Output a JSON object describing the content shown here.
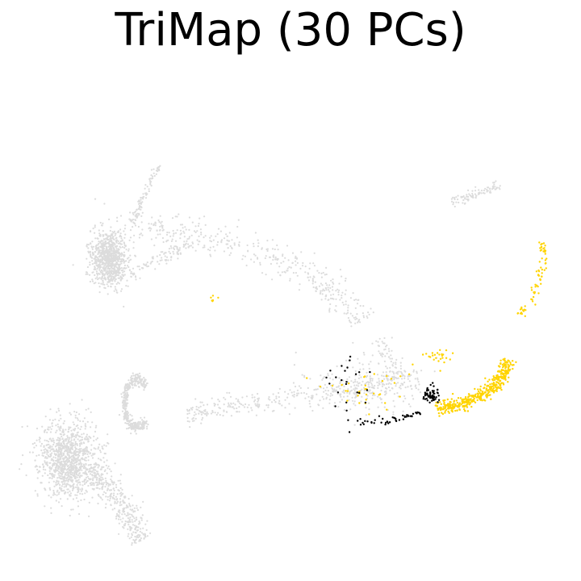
{
  "chart_data": {
    "type": "scatter",
    "title": "TriMap (30 PCs)",
    "xlabel": "",
    "ylabel": "",
    "axes_visible": false,
    "grid": false,
    "legend": "none",
    "colors": {
      "background_cells": "#dcdcdc",
      "highlight_yellow": "#ffd400",
      "highlight_black": "#000000"
    },
    "series": [
      {
        "color": "#dcdcdc",
        "marker_size": "small",
        "clusters": [
          {
            "shape": "blob",
            "center": [
              135,
              320
            ],
            "spread": [
              22,
              35
            ],
            "count": 900
          },
          {
            "shape": "curve",
            "path": [
              [
                150,
                280
              ],
              [
                230,
                290
              ],
              [
                320,
                310
              ],
              [
                400,
                350
              ],
              [
                450,
                400
              ]
            ],
            "width": 20,
            "count": 420
          },
          {
            "shape": "curve",
            "path": [
              [
                165,
                275
              ],
              [
                180,
                240
              ],
              [
                198,
                205
              ]
            ],
            "width": 4,
            "count": 80
          },
          {
            "shape": "curve",
            "path": [
              [
                160,
                340
              ],
              [
                200,
                320
              ],
              [
                240,
                300
              ]
            ],
            "width": 8,
            "count": 90
          },
          {
            "shape": "curve",
            "path": [
              [
                560,
                250
              ],
              [
                590,
                240
              ],
              [
                620,
                230
              ]
            ],
            "width": 6,
            "count": 90
          },
          {
            "shape": "crescent",
            "center": [
              170,
              500
            ],
            "spread": [
              20,
              30
            ],
            "count": 380
          },
          {
            "shape": "blob",
            "center": [
              85,
              570
            ],
            "spread": [
              38,
              48
            ],
            "count": 1100
          },
          {
            "shape": "curve",
            "path": [
              [
                110,
                580
              ],
              [
                140,
                610
              ],
              [
                160,
                640
              ],
              [
                175,
                670
              ]
            ],
            "width": 16,
            "count": 360
          },
          {
            "shape": "curve",
            "path": [
              [
                230,
                515
              ],
              [
                300,
                500
              ],
              [
                380,
                490
              ],
              [
                460,
                480
              ],
              [
                520,
                470
              ]
            ],
            "width": 14,
            "count": 320
          },
          {
            "shape": "blob",
            "center": [
              450,
              480
            ],
            "spread": [
              70,
              35
            ],
            "count": 220
          },
          {
            "shape": "curve",
            "path": [
              [
                470,
                420
              ],
              [
                480,
                440
              ],
              [
                495,
                470
              ]
            ],
            "width": 10,
            "count": 60
          }
        ]
      },
      {
        "color": "#ffd400",
        "marker_size": "small",
        "clusters": [
          {
            "shape": "curve",
            "path": [
              [
                540,
                505
              ],
              [
                570,
                500
              ],
              [
                600,
                490
              ],
              [
                620,
                470
              ],
              [
                630,
                445
              ]
            ],
            "width": 9,
            "count": 420
          },
          {
            "shape": "curve",
            "path": [
              [
                640,
                395
              ],
              [
                660,
                370
              ],
              [
                670,
                340
              ],
              [
                675,
                315
              ],
              [
                668,
                300
              ]
            ],
            "width": 5,
            "count": 70
          },
          {
            "shape": "blob",
            "center": [
              540,
              440
            ],
            "spread": [
              20,
              12
            ],
            "count": 25
          },
          {
            "shape": "blob",
            "center": [
              450,
              485
            ],
            "spread": [
              55,
              30
            ],
            "count": 35
          },
          {
            "shape": "blob",
            "center": [
              265,
              370
            ],
            "spread": [
              4,
              4
            ],
            "count": 6
          }
        ]
      },
      {
        "color": "#000000",
        "marker_size": "small",
        "clusters": [
          {
            "shape": "blob",
            "center": [
              535,
              490
            ],
            "spread": [
              10,
              10
            ],
            "count": 60
          },
          {
            "shape": "curve",
            "path": [
              [
                430,
                525
              ],
              [
                470,
                522
              ],
              [
                500,
                518
              ],
              [
                520,
                510
              ]
            ],
            "width": 5,
            "count": 45
          },
          {
            "shape": "blob",
            "center": [
              430,
              480
            ],
            "spread": [
              40,
              40
            ],
            "count": 25
          }
        ]
      }
    ]
  }
}
